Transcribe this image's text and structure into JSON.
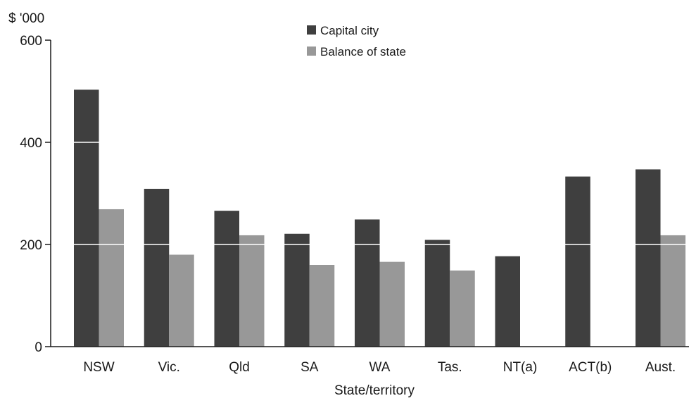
{
  "chart_data": {
    "type": "bar",
    "title": "",
    "ylabel": "$ '000",
    "xlabel": "State/territory",
    "categories": [
      "NSW",
      "Vic.",
      "Qld",
      "SA",
      "WA",
      "Tas.",
      "NT(a)",
      "ACT(b)",
      "Aust."
    ],
    "series": [
      {
        "name": "Capital city",
        "values": [
          503,
          309,
          266,
          221,
          249,
          209,
          177,
          333,
          347
        ]
      },
      {
        "name": "Balance of state",
        "values": [
          269,
          180,
          218,
          160,
          166,
          149,
          null,
          null,
          218
        ]
      }
    ],
    "ylim": [
      0,
      600
    ],
    "yticks": [
      0,
      200,
      400,
      600
    ],
    "grid": "white lines across bars at each y tick",
    "legend": "top-center"
  },
  "colors": {
    "capital_city": "#3f3f3f",
    "balance_of_state": "#989898",
    "gridline": "#ffffff",
    "axis": "#1a1a1a"
  }
}
